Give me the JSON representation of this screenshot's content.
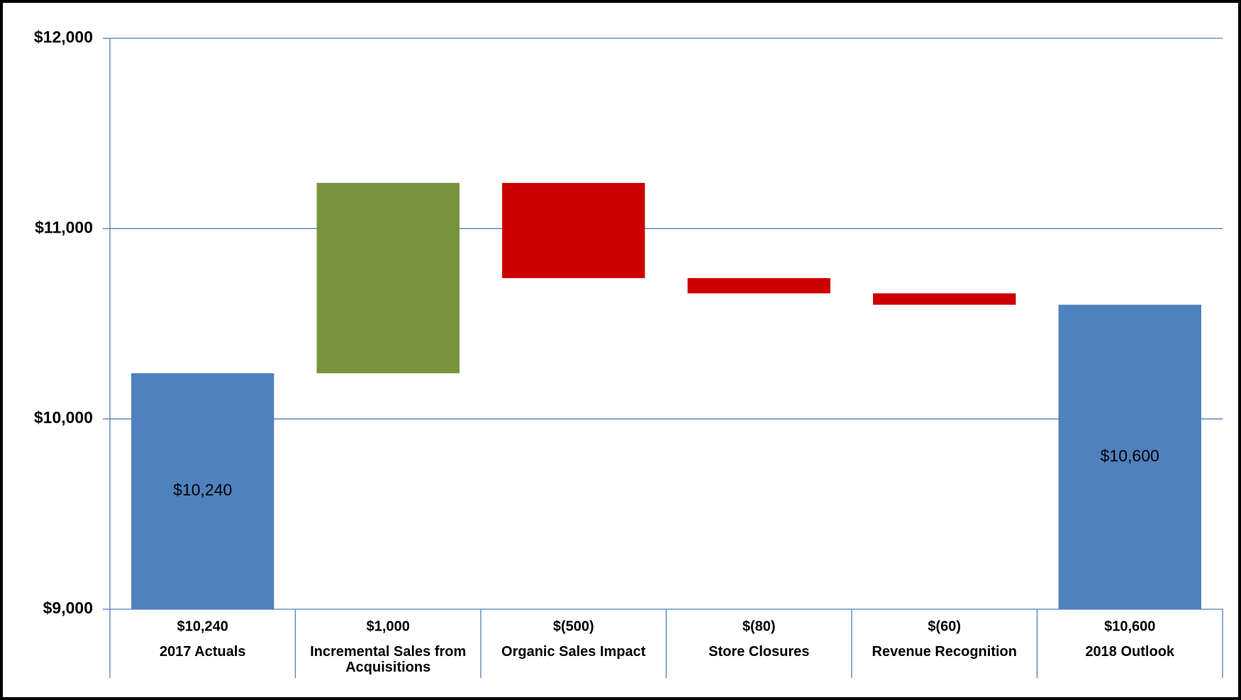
{
  "chart_data": {
    "type": "waterfall",
    "categories": [
      "2017 Actuals",
      "Incremental Sales from Acquisitions",
      "Organic Sales Impact",
      "Store Closures",
      "Revenue Recognition",
      "2018 Outlook"
    ],
    "values": [
      10240,
      1000,
      -500,
      -80,
      -60,
      10600
    ],
    "value_labels": [
      "$10,240",
      "$1,000",
      "$(500)",
      "$(80)",
      "$(60)",
      "$10,600"
    ],
    "measures": [
      "total",
      "relative",
      "relative",
      "relative",
      "relative",
      "total"
    ],
    "total_color": "#4f81bd",
    "increase_color": "#77933c",
    "decrease_color": "#cc0000",
    "ylim": [
      9000,
      12000
    ],
    "yticks": [
      {
        "value": 9000,
        "label": "$9,000"
      },
      {
        "value": 10000,
        "label": "$10,000"
      },
      {
        "value": 11000,
        "label": "$11,000"
      },
      {
        "value": 12000,
        "label": "$12,000"
      }
    ],
    "grid": true
  }
}
